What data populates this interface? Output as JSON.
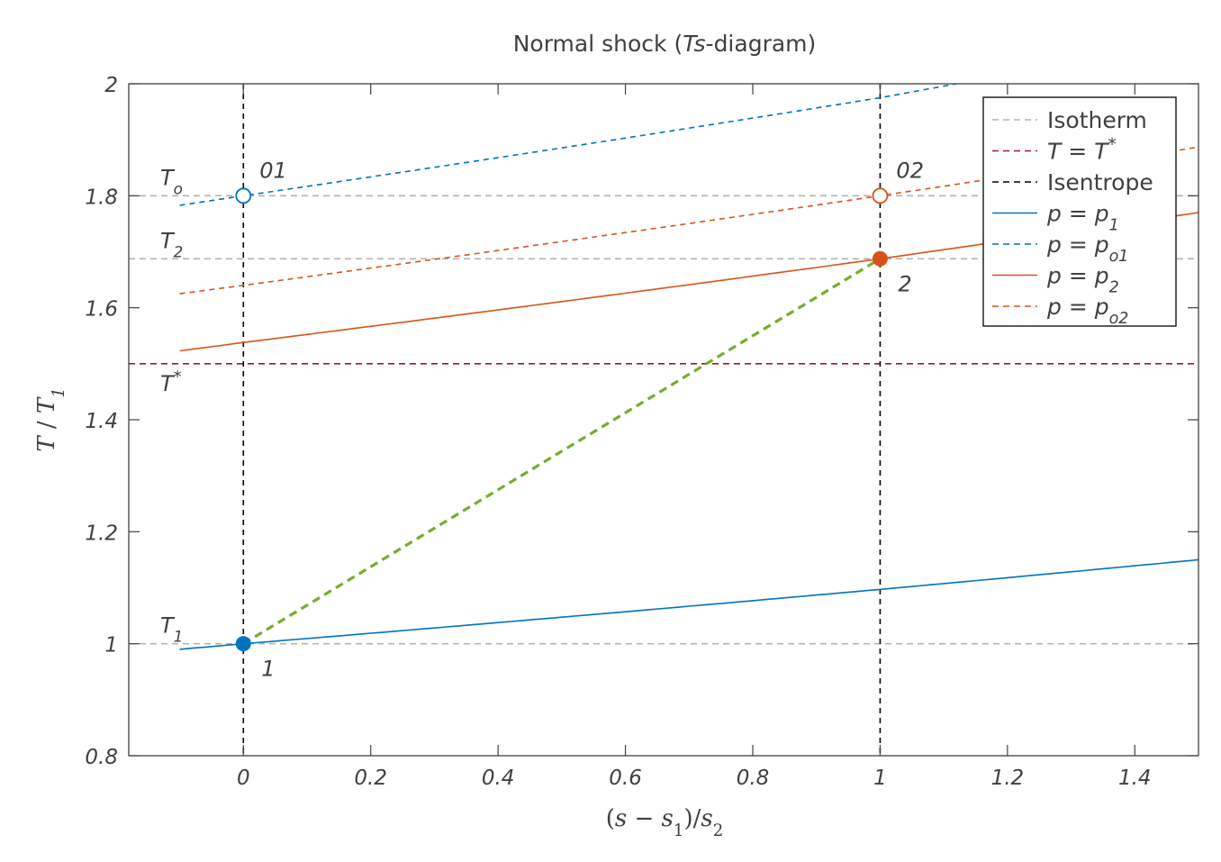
{
  "chart_data": {
    "type": "line",
    "title": "Normal shock (Ts-diagram)",
    "xlabel": "(s − s1)/s2",
    "ylabel": "T / T1",
    "xlim": [
      -0.18,
      1.5
    ],
    "ylim": [
      0.8,
      2.0
    ],
    "xticks": [
      0,
      0.2,
      0.4,
      0.6,
      0.8,
      1,
      1.2,
      1.4
    ],
    "yticks": [
      0.8,
      1,
      1.2,
      1.4,
      1.6,
      1.8,
      2
    ],
    "xtick_labels": [
      "0",
      "0.2",
      "0.4",
      "0.6",
      "0.8",
      "1",
      "1.2",
      "1.4"
    ],
    "ytick_labels": [
      "0.8",
      "1",
      "1.2",
      "1.4",
      "1.6",
      "1.8",
      "2"
    ],
    "grid": false,
    "legend_position": "top-right",
    "colors": {
      "isotherm": "#b3b3b3",
      "tstar": "#a2142f",
      "isentrope": "#000000",
      "p1": "#0072bd",
      "p2": "#d95319",
      "shock": "#77ac30",
      "text": "#404040"
    },
    "isotherms": [
      {
        "y": 1.0,
        "label": "T1"
      },
      {
        "y": 1.6875,
        "label": "T2"
      },
      {
        "y": 1.8,
        "label": "To"
      }
    ],
    "tstar": {
      "y": 1.5,
      "label": "T*"
    },
    "isentropes": [
      0,
      1
    ],
    "series": [
      {
        "name": "Isotherm",
        "style": "dashed",
        "color": "#b3b3b3"
      },
      {
        "name": "T = T*",
        "style": "dashed",
        "color": "#a2142f"
      },
      {
        "name": "Isentrope",
        "style": "dashed",
        "color": "#000000"
      },
      {
        "name": "p = p1",
        "style": "solid",
        "color": "#0072bd",
        "x": [
          -0.1,
          0,
          1,
          1.5
        ],
        "y": [
          0.99,
          1.0,
          1.097,
          1.15
        ]
      },
      {
        "name": "p = po1",
        "style": "dashed",
        "color": "#0072bd",
        "x": [
          -0.1,
          0,
          1,
          1.12
        ],
        "y": [
          1.783,
          1.8,
          1.975,
          2.0
        ]
      },
      {
        "name": "p = p2",
        "style": "solid",
        "color": "#d95319",
        "x": [
          -0.1,
          0,
          1,
          1.5
        ],
        "y": [
          1.523,
          1.538,
          1.6875,
          1.77
        ]
      },
      {
        "name": "p = po2",
        "style": "dashed",
        "color": "#d95319",
        "x": [
          -0.1,
          0,
          1,
          1.5
        ],
        "y": [
          1.625,
          1.64,
          1.8,
          1.887
        ]
      }
    ],
    "shock_line": {
      "x": [
        0,
        1
      ],
      "y": [
        1.0,
        1.6875
      ]
    },
    "points": [
      {
        "label": "1",
        "x": 0,
        "y": 1.0,
        "filled": true,
        "color": "#0072bd"
      },
      {
        "label": "2",
        "x": 1,
        "y": 1.6875,
        "filled": true,
        "color": "#d95319"
      },
      {
        "label": "01",
        "x": 0,
        "y": 1.8,
        "filled": false,
        "color": "#0072bd"
      },
      {
        "label": "02",
        "x": 1,
        "y": 1.8,
        "filled": false,
        "color": "#d95319"
      }
    ]
  }
}
